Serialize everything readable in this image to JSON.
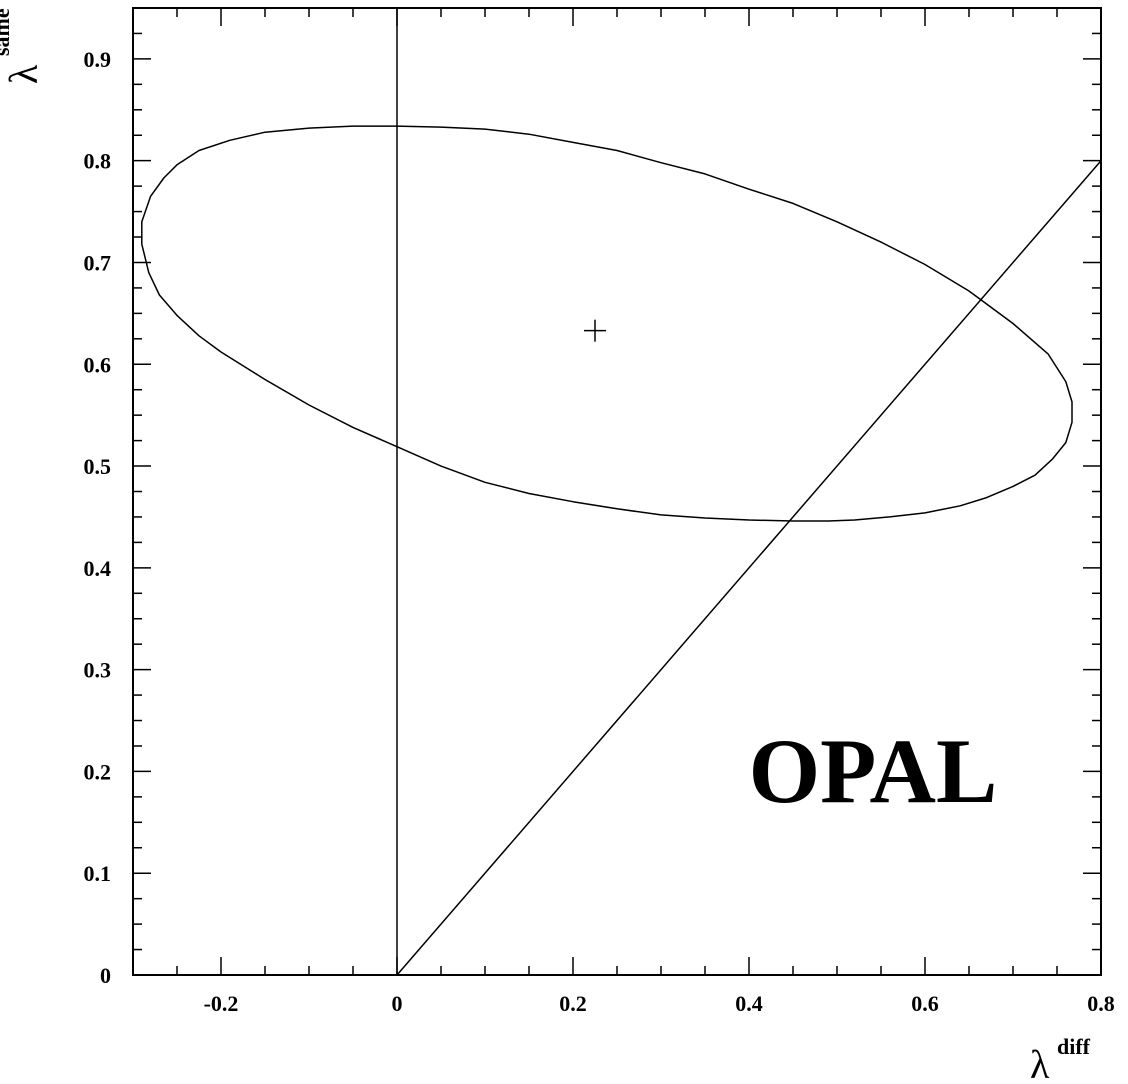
{
  "chart_data": {
    "type": "line",
    "title": "",
    "xlabel": {
      "symbol": "λ",
      "superscript": "diff"
    },
    "ylabel": {
      "symbol": "λ",
      "superscript": "same"
    },
    "xlim": [
      -0.3,
      0.8
    ],
    "ylim": [
      0,
      0.95
    ],
    "x_ticks": [
      -0.2,
      0,
      0.2,
      0.4,
      0.6,
      0.8
    ],
    "x_tick_labels": [
      "-0.2",
      "0",
      "0.2",
      "0.4",
      "0.6",
      "0.8"
    ],
    "y_ticks": [
      0,
      0.1,
      0.2,
      0.3,
      0.4,
      0.5,
      0.6,
      0.7,
      0.8,
      0.9
    ],
    "y_tick_labels": [
      "0",
      "0.1",
      "0.2",
      "0.3",
      "0.4",
      "0.5",
      "0.6",
      "0.7",
      "0.8",
      "0.9"
    ],
    "x_minor_step": 0.05,
    "y_minor_step": 0.025,
    "grid": false,
    "annotation": "OPAL",
    "best_fit": {
      "x": 0.225,
      "y": 0.633
    },
    "series": [
      {
        "kind": "contour",
        "points": [
          [
            -0.29,
            0.718
          ],
          [
            -0.29,
            0.74
          ],
          [
            -0.28,
            0.765
          ],
          [
            -0.265,
            0.783
          ],
          [
            -0.25,
            0.796
          ],
          [
            -0.225,
            0.81
          ],
          [
            -0.19,
            0.82
          ],
          [
            -0.15,
            0.828
          ],
          [
            -0.1,
            0.832
          ],
          [
            -0.05,
            0.834
          ],
          [
            0.0,
            0.834
          ],
          [
            0.05,
            0.833
          ],
          [
            0.1,
            0.831
          ],
          [
            0.15,
            0.826
          ],
          [
            0.2,
            0.818
          ],
          [
            0.25,
            0.81
          ],
          [
            0.3,
            0.798
          ],
          [
            0.35,
            0.787
          ],
          [
            0.4,
            0.772
          ],
          [
            0.45,
            0.758
          ],
          [
            0.5,
            0.74
          ],
          [
            0.55,
            0.72
          ],
          [
            0.6,
            0.698
          ],
          [
            0.65,
            0.672
          ],
          [
            0.7,
            0.64
          ],
          [
            0.74,
            0.61
          ],
          [
            0.76,
            0.583
          ],
          [
            0.767,
            0.563
          ],
          [
            0.767,
            0.543
          ],
          [
            0.76,
            0.523
          ],
          [
            0.745,
            0.507
          ],
          [
            0.725,
            0.491
          ],
          [
            0.7,
            0.48
          ],
          [
            0.67,
            0.469
          ],
          [
            0.64,
            0.461
          ],
          [
            0.6,
            0.454
          ],
          [
            0.56,
            0.45
          ],
          [
            0.52,
            0.447
          ],
          [
            0.49,
            0.446
          ],
          [
            0.45,
            0.446
          ],
          [
            0.4,
            0.447
          ],
          [
            0.35,
            0.449
          ],
          [
            0.3,
            0.452
          ],
          [
            0.25,
            0.458
          ],
          [
            0.2,
            0.465
          ],
          [
            0.15,
            0.473
          ],
          [
            0.1,
            0.484
          ],
          [
            0.05,
            0.5
          ],
          [
            0.0,
            0.519
          ],
          [
            -0.05,
            0.538
          ],
          [
            -0.1,
            0.56
          ],
          [
            -0.15,
            0.585
          ],
          [
            -0.2,
            0.612
          ],
          [
            -0.225,
            0.628
          ],
          [
            -0.25,
            0.648
          ],
          [
            -0.27,
            0.668
          ],
          [
            -0.282,
            0.69
          ],
          [
            -0.29,
            0.718
          ]
        ]
      },
      {
        "kind": "line",
        "points": [
          [
            0,
            0
          ],
          [
            0,
            0.95
          ]
        ]
      },
      {
        "kind": "line",
        "points": [
          [
            0,
            0
          ],
          [
            0.8,
            0.8
          ]
        ]
      }
    ]
  }
}
